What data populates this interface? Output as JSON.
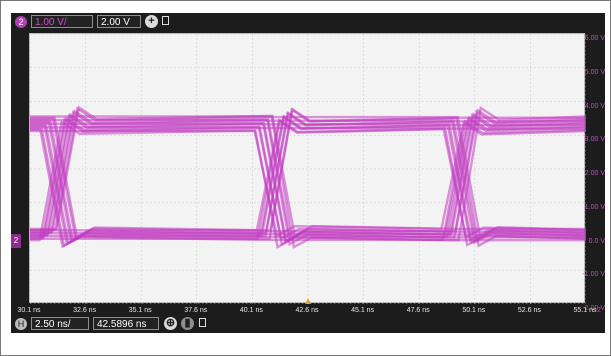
{
  "vertical": {
    "channel_badge": "2",
    "scale": "1.00 V/",
    "offset": "2.00 V"
  },
  "horizontal": {
    "badge": "H",
    "scale": "2.50 ns/",
    "position": "42.5896 ns"
  },
  "left_marker": "2",
  "colors": {
    "trace": "#c13cc1",
    "label": "#c74ac7",
    "background": "#1c1c1c",
    "grid": "#f3f3f3"
  },
  "icons": {
    "add": "plus-icon",
    "square": "square-icon"
  },
  "chart_data": {
    "type": "line",
    "title": "",
    "xlabel": "",
    "ylabel": "",
    "x_ticks": [
      "30.1 ns",
      "32.6 ns",
      "35.1 ns",
      "37.6 ns",
      "40.1 ns",
      "42.6 ns",
      "45.1 ns",
      "47.6 ns",
      "50.1 ns",
      "52.6 ns",
      "55.1 ns"
    ],
    "y_ticks": [
      "6.00 V",
      "5.00 V",
      "4.00 V",
      "3.00 V",
      "2.00 V",
      "1.00 V",
      "0.0 V",
      "-1.00 V",
      "-2.00 V"
    ],
    "xlim": [
      30.1,
      55.1
    ],
    "ylim": [
      -2.0,
      6.0
    ],
    "corner_label": "2",
    "grid": true,
    "series": [
      {
        "type": "eye_diagram",
        "high_level_v": 3.35,
        "low_level_v": 0.05,
        "high_spread_v": 0.45,
        "low_spread_v": 0.35,
        "transitions_ns": [
          31.5,
          41.2,
          49.6
        ],
        "edge_width_ns": 1.2
      }
    ]
  }
}
